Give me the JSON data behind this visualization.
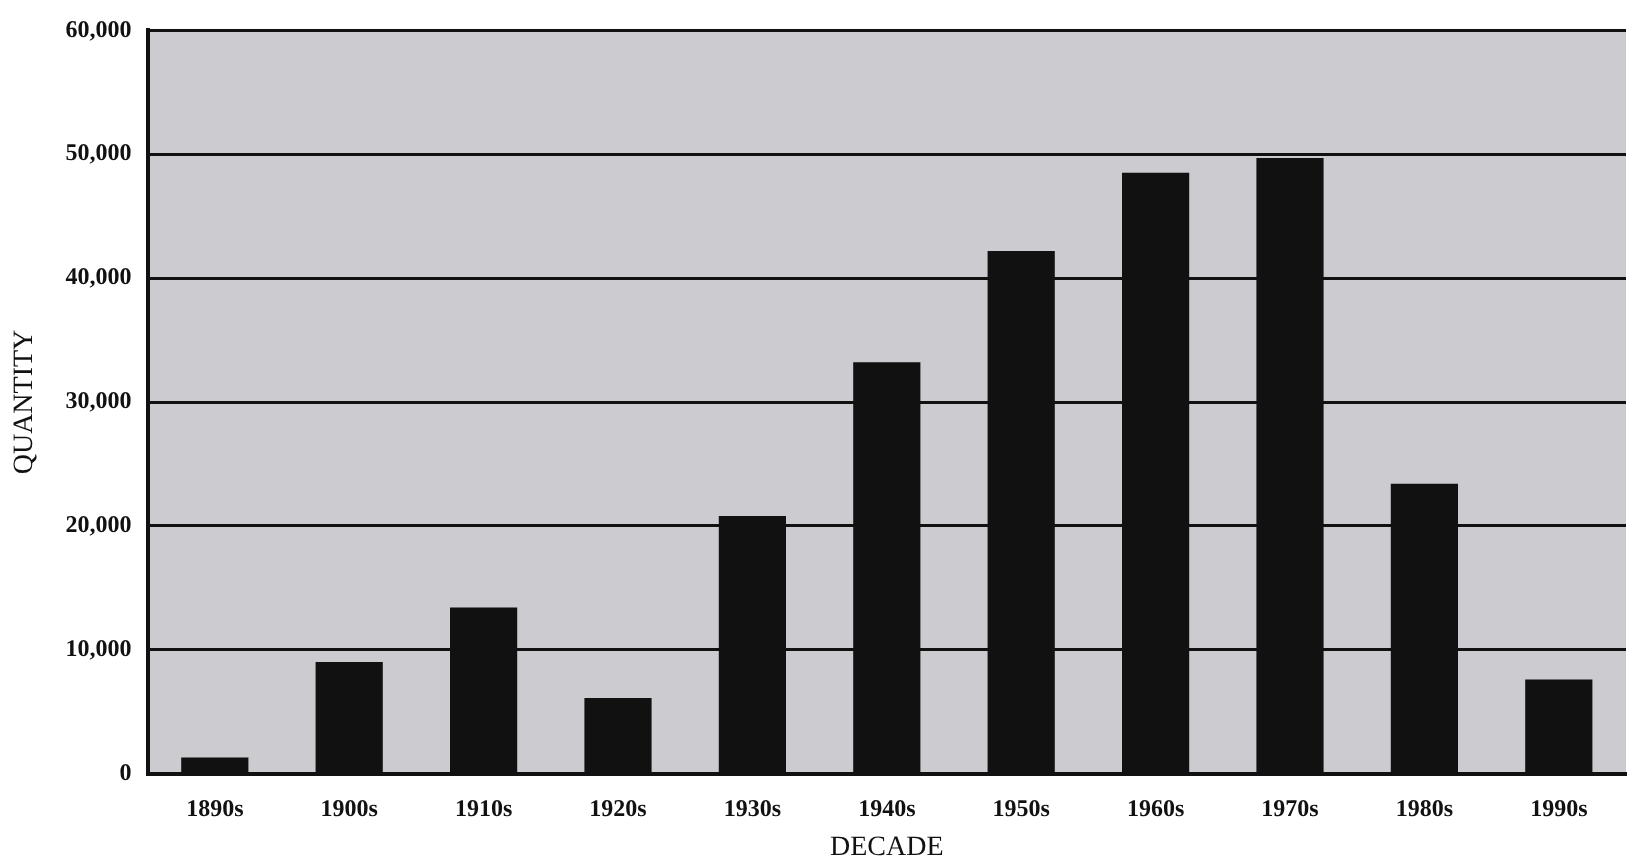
{
  "chart_data": {
    "type": "bar",
    "xlabel": "DECADE",
    "ylabel": "QUANTITY",
    "categories": [
      "1890s",
      "1900s",
      "1910s",
      "1920s",
      "1930s",
      "1940s",
      "1950s",
      "1960s",
      "1970s",
      "1980s",
      "1990s"
    ],
    "values": [
      1300,
      9000,
      13400,
      6100,
      20800,
      33200,
      42200,
      48500,
      49700,
      23400,
      7600
    ],
    "color": "#111111",
    "ylim": [
      0,
      60000
    ],
    "yticks": [
      0,
      {
        "value": 10000,
        "label": "10,000"
      },
      {
        "value": 20000,
        "label": "20,000"
      },
      {
        "value": 30000,
        "label": "30,000"
      },
      {
        "value": 40000,
        "label": "40,000"
      },
      {
        "value": 50000,
        "label": "50,000"
      },
      {
        "value": 60000,
        "label": "60,000"
      }
    ],
    "grid": "y",
    "legend": false
  }
}
